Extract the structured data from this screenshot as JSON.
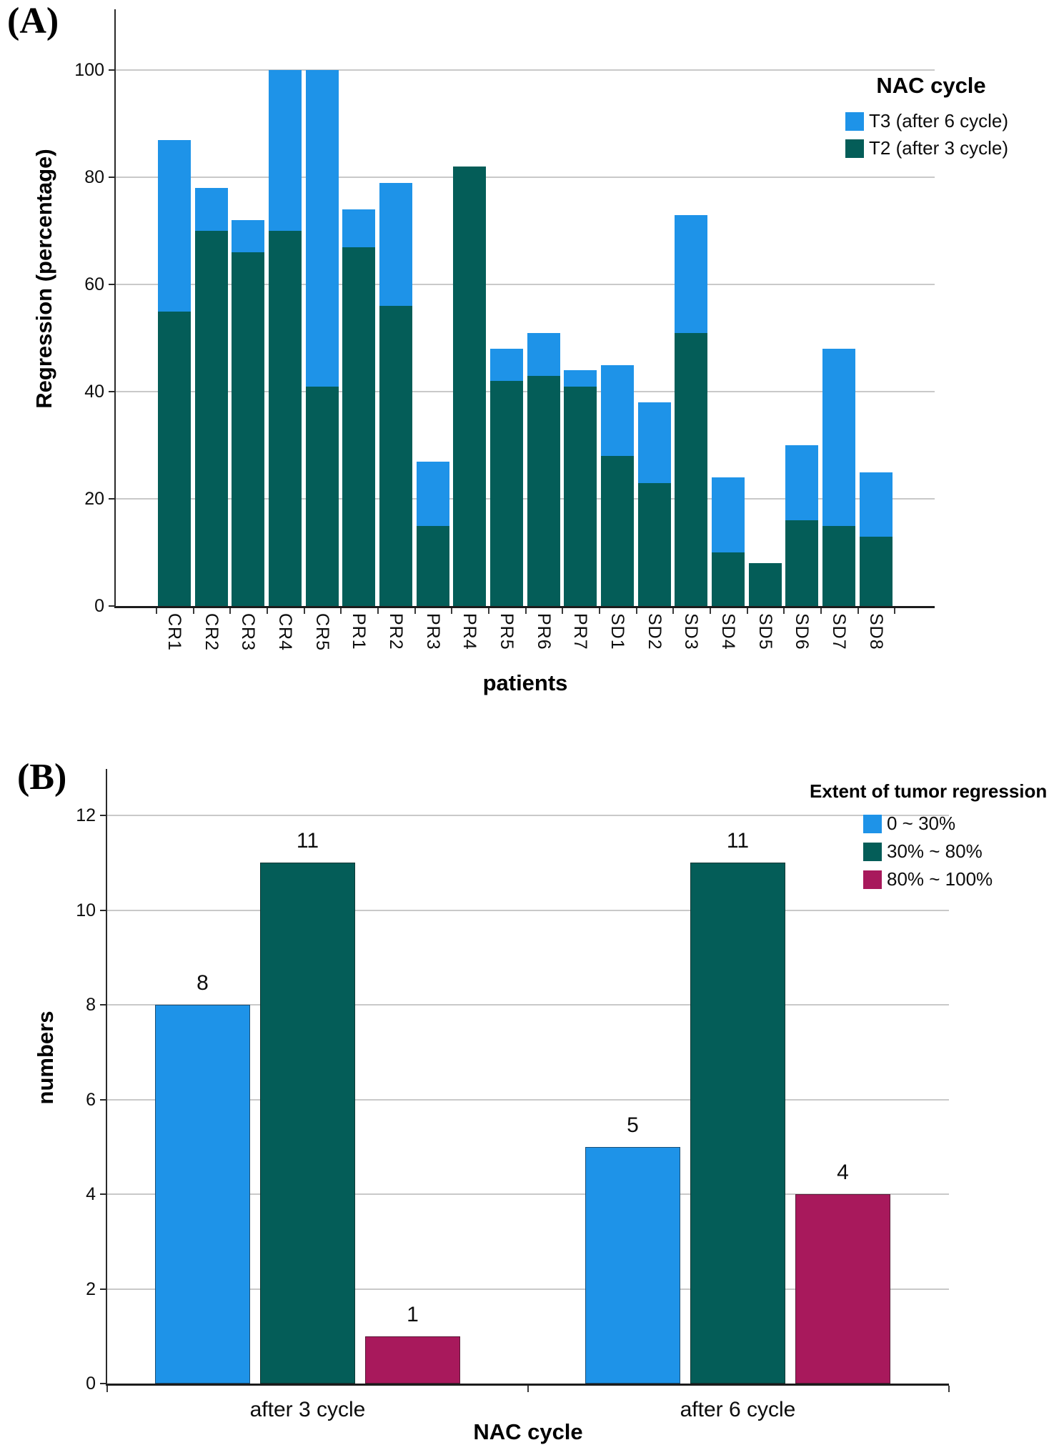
{
  "figure": {
    "panel_a_letter": "(A)",
    "panel_b_letter": "(B)"
  },
  "chart_data": [
    {
      "id": "A",
      "type": "bar",
      "subtype": "overlaid",
      "xlabel": "patients",
      "ylabel": "Regression (percentage)",
      "ylim": [
        0,
        100
      ],
      "yticks": [
        0,
        20,
        40,
        60,
        80,
        100
      ],
      "grid": true,
      "legend_title": "NAC cycle",
      "legend_position": "top-right",
      "categories": [
        "CR1",
        "CR2",
        "CR3",
        "CR4",
        "CR5",
        "PR1",
        "PR2",
        "PR3",
        "PR4",
        "PR5",
        "PR6",
        "PR7",
        "SD1",
        "SD2",
        "SD3",
        "SD4",
        "SD5",
        "SD6",
        "SD7",
        "SD8"
      ],
      "series": [
        {
          "name": "T3 (after 6 cycle)",
          "color": "#1E93E8",
          "values": [
            87,
            78,
            72,
            100,
            100,
            74,
            79,
            27,
            82,
            48,
            51,
            44,
            45,
            38,
            73,
            24,
            8,
            30,
            48,
            25
          ]
        },
        {
          "name": "T2 (after 3 cycle)",
          "color": "#045D58",
          "values": [
            55,
            70,
            66,
            70,
            41,
            67,
            56,
            15,
            82,
            42,
            43,
            41,
            28,
            23,
            51,
            10,
            8,
            16,
            15,
            13
          ]
        }
      ]
    },
    {
      "id": "B",
      "type": "bar",
      "subtype": "grouped",
      "xlabel": "NAC cycle",
      "ylabel": "numbers",
      "ylim": [
        0,
        12
      ],
      "yticks": [
        0,
        2,
        4,
        6,
        8,
        10,
        12
      ],
      "grid": true,
      "bar_value_labels": true,
      "legend_title": "Extent of tumor regression",
      "legend_position": "top-right",
      "categories": [
        "after 3 cycle",
        "after 6 cycle"
      ],
      "series": [
        {
          "name": "0 ~ 30%",
          "color": "#1E93E8",
          "values": [
            8,
            5
          ]
        },
        {
          "name": "30% ~ 80%",
          "color": "#045D58",
          "values": [
            11,
            11
          ]
        },
        {
          "name": "80% ~ 100%",
          "color": "#A8195C",
          "values": [
            1,
            4
          ]
        }
      ]
    }
  ],
  "style_colors": {
    "gridline": "#C9C9C9",
    "axis": "#2A2A2A"
  }
}
